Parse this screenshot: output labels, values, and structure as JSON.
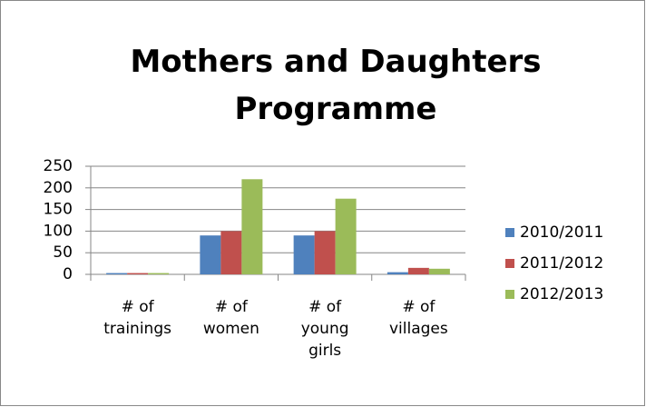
{
  "chart_data": {
    "type": "bar",
    "title": "Mothers and Daughters\nProgramme",
    "categories": [
      "# of\ntrainings",
      "# of\nwomen",
      "# of\nyoung\ngirls",
      "# of\nvillages"
    ],
    "series": [
      {
        "name": "2010/2011",
        "color": "#4f81bd",
        "values": [
          3,
          90,
          90,
          5
        ]
      },
      {
        "name": "2011/2012",
        "color": "#c0504d",
        "values": [
          3,
          100,
          100,
          15
        ]
      },
      {
        "name": "2012/2013",
        "color": "#9bbb59",
        "values": [
          3,
          220,
          175,
          13
        ]
      }
    ],
    "ylim": [
      0,
      250
    ],
    "yticks": [
      0,
      50,
      100,
      150,
      200,
      250
    ],
    "grid": true,
    "legend": "right"
  }
}
